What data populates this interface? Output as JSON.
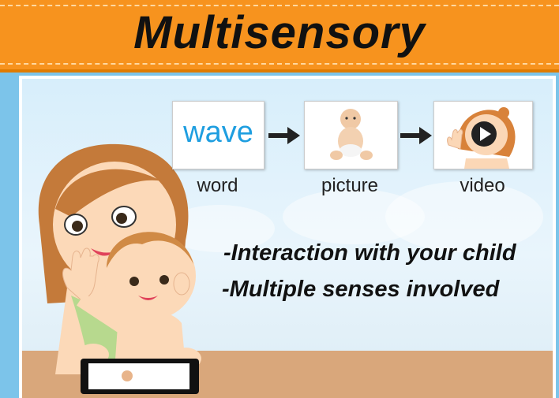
{
  "title": "Multisensory",
  "flow": {
    "word_card_text": "wave",
    "captions": [
      "word",
      "picture",
      "video"
    ]
  },
  "bullets": [
    "-Interaction with your child",
    "-Multiple senses involved"
  ],
  "colors": {
    "banner": "#f7931e",
    "background": "#7cc4ea",
    "word_blue": "#1e9ee0"
  },
  "icons": {
    "play": "play-icon",
    "arrow": "right-arrow-icon"
  }
}
